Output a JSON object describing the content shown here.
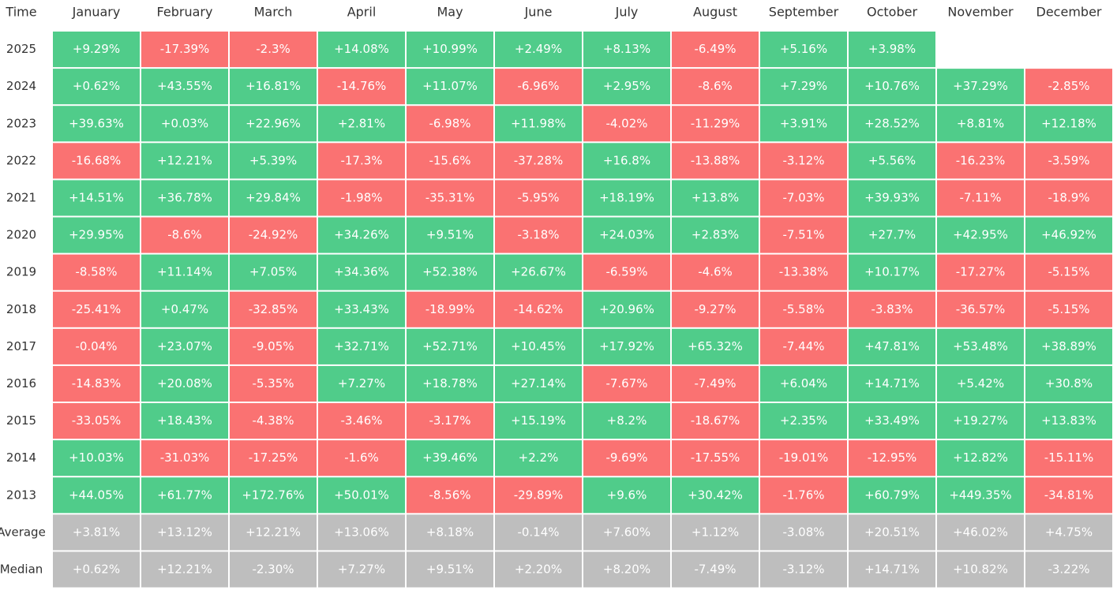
{
  "table": {
    "header": [
      "Time",
      "January",
      "February",
      "March",
      "April",
      "May",
      "June",
      "July",
      "August",
      "September",
      "October",
      "November",
      "December"
    ],
    "rows": [
      [
        "2025",
        "+9.29%",
        "-17.39%",
        "-2.3%",
        "+14.08%",
        "+10.99%",
        "+2.49%",
        "+8.13%",
        "-6.49%",
        "+5.16%",
        "+3.98%"
      ],
      [
        "2024",
        "+0.62%",
        "+43.55%",
        "+16.81%",
        "-14.76%",
        "+11.07%",
        "-6.96%",
        "+2.95%",
        "-8.6%",
        "+7.29%",
        "+10.76%",
        "+37.29%",
        "-2.85%"
      ],
      [
        "2023",
        "+39.63%",
        "+0.03%",
        "+22.96%",
        "+2.81%",
        "-6.98%",
        "+11.98%",
        "-4.02%",
        "-11.29%",
        "+3.91%",
        "+28.52%",
        "+8.81%",
        "+12.18%"
      ],
      [
        "2022",
        "-16.68%",
        "+12.21%",
        "+5.39%",
        "-17.3%",
        "-15.6%",
        "-37.28%",
        "+16.8%",
        "-13.88%",
        "-3.12%",
        "+5.56%",
        "-16.23%",
        "-3.59%"
      ],
      [
        "2021",
        "+14.51%",
        "+36.78%",
        "+29.84%",
        "-1.98%",
        "-35.31%",
        "-5.95%",
        "+18.19%",
        "+13.8%",
        "-7.03%",
        "+39.93%",
        "-7.11%",
        "-18.9%"
      ],
      [
        "2020",
        "+29.95%",
        "-8.6%",
        "-24.92%",
        "+34.26%",
        "+9.51%",
        "-3.18%",
        "+24.03%",
        "+2.83%",
        "-7.51%",
        "+27.7%",
        "+42.95%",
        "+46.92%"
      ],
      [
        "2019",
        "-8.58%",
        "+11.14%",
        "+7.05%",
        "+34.36%",
        "+52.38%",
        "+26.67%",
        "-6.59%",
        "-4.6%",
        "-13.38%",
        "+10.17%",
        "-17.27%",
        "-5.15%"
      ],
      [
        "2018",
        "-25.41%",
        "+0.47%",
        "-32.85%",
        "+33.43%",
        "-18.99%",
        "-14.62%",
        "+20.96%",
        "-9.27%",
        "-5.58%",
        "-3.83%",
        "-36.57%",
        "-5.15%"
      ],
      [
        "2017",
        "-0.04%",
        "+23.07%",
        "-9.05%",
        "+32.71%",
        "+52.71%",
        "+10.45%",
        "+17.92%",
        "+65.32%",
        "-7.44%",
        "+47.81%",
        "+53.48%",
        "+38.89%"
      ],
      [
        "2016",
        "-14.83%",
        "+20.08%",
        "-5.35%",
        "+7.27%",
        "+18.78%",
        "+27.14%",
        "-7.67%",
        "-7.49%",
        "+6.04%",
        "+14.71%",
        "+5.42%",
        "+30.8%"
      ],
      [
        "2015",
        "-33.05%",
        "+18.43%",
        "-4.38%",
        "-3.46%",
        "-3.17%",
        "+15.19%",
        "+8.2%",
        "-18.67%",
        "+2.35%",
        "+33.49%",
        "+19.27%",
        "+13.83%"
      ],
      [
        "2014",
        "+10.03%",
        "-31.03%",
        "-17.25%",
        "-1.6%",
        "+39.46%",
        "+2.2%",
        "-9.69%",
        "-17.55%",
        "-19.01%",
        "-12.95%",
        "+12.82%",
        "-15.11%"
      ],
      [
        "2013",
        "+44.05%",
        "+61.77%",
        "+172.76%",
        "+50.01%",
        "-8.56%",
        "-29.89%",
        "+9.6%",
        "+30.42%",
        "-1.76%",
        "+60.79%",
        "+449.35%",
        "-34.81%"
      ]
    ],
    "summary_rows": [
      [
        "Average",
        "+3.81%",
        "+13.12%",
        "+12.21%",
        "+13.06%",
        "+8.18%",
        "-0.14%",
        "+7.60%",
        "+1.12%",
        "-3.08%",
        "+20.51%",
        "+46.02%",
        "+4.75%"
      ],
      [
        "Median",
        "+0.62%",
        "+12.21%",
        "-2.30%",
        "+7.27%",
        "+9.51%",
        "+2.20%",
        "+8.20%",
        "-7.49%",
        "-3.12%",
        "+14.71%",
        "+10.82%",
        "-3.22%"
      ]
    ],
    "colors": {
      "positive": "#50cc8a",
      "negative": "#fa7272",
      "summary": "#bebebe"
    }
  }
}
